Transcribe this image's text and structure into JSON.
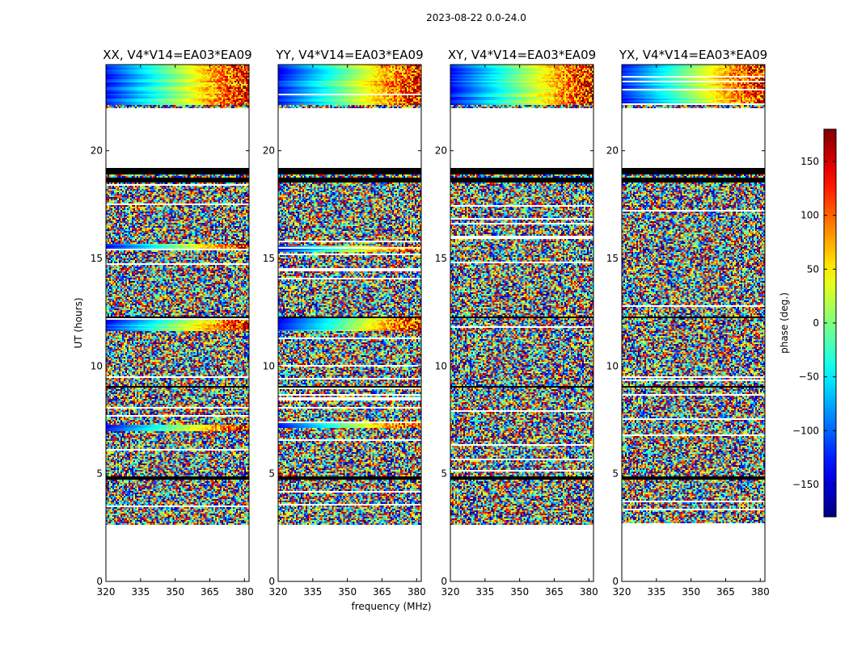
{
  "figure_title": "2023-08-22 0.0-24.0",
  "chart_data": {
    "type": "heatmap",
    "title": "2023-08-22 0.0-24.0",
    "xlabel": "frequency (MHz)",
    "ylabel": "UT (hours)",
    "xlim": [
      320,
      382
    ],
    "ylim": [
      0,
      24
    ],
    "x_ticks": [
      320,
      335,
      350,
      365,
      380
    ],
    "y_ticks": [
      0,
      5,
      10,
      15,
      20
    ],
    "colorbar": {
      "label": "phase (deg.)",
      "range": [
        -180,
        180
      ],
      "ticks": [
        -150,
        -100,
        -50,
        0,
        50,
        100,
        150
      ],
      "colormap": "jet"
    },
    "data_coverage_hours": [
      2.6,
      24.0
    ],
    "gap_hours": [
      19.2,
      22.0
    ],
    "flagged_black_bands_hours": [
      [
        18.9,
        19.2
      ],
      [
        18.55,
        18.75
      ],
      [
        12.2,
        12.3
      ],
      [
        9.0,
        9.1
      ],
      [
        4.75,
        4.85
      ]
    ],
    "panels": [
      {
        "name": "xx",
        "title": "XX, V4*V14=EA03*EA09",
        "coherent_bands_hours": [
          [
            22.1,
            24.0
          ],
          [
            15.4,
            15.7
          ],
          [
            11.6,
            12.2
          ],
          [
            7.0,
            7.3
          ]
        ]
      },
      {
        "name": "yy",
        "title": "YY, V4*V14=EA03*EA09",
        "coherent_bands_hours": [
          [
            22.1,
            24.0
          ],
          [
            15.3,
            15.6
          ],
          [
            11.6,
            12.3
          ],
          [
            7.1,
            7.4
          ]
        ]
      },
      {
        "name": "xy",
        "title": "XY, V4*V14=EA03*EA09",
        "coherent_bands_hours": [
          [
            22.1,
            24.0
          ]
        ]
      },
      {
        "name": "yx",
        "title": "YX, V4*V14=EA03*EA09",
        "coherent_bands_hours": [
          [
            22.1,
            24.0
          ]
        ]
      }
    ]
  }
}
